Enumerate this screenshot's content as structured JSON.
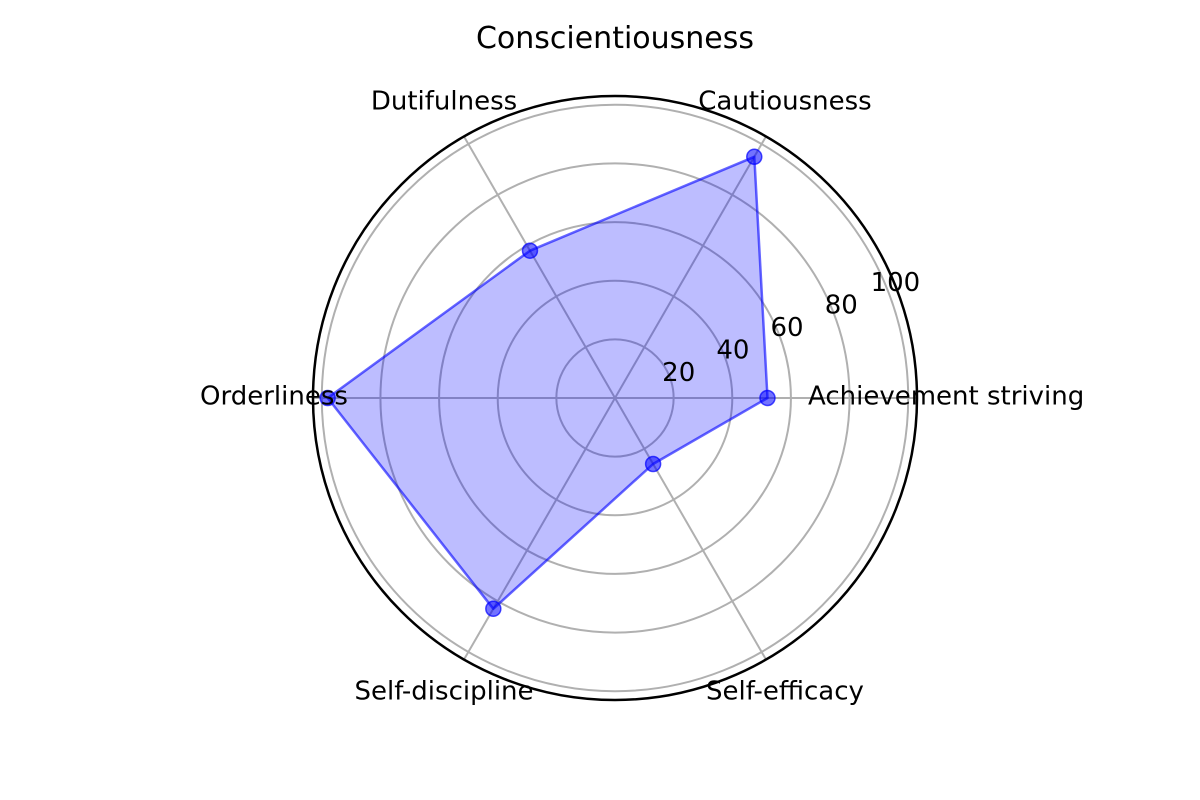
{
  "chart_data": {
    "type": "radar",
    "title": "Conscientiousness",
    "categories": [
      "Achievement striving",
      "Cautiousness",
      "Dutifulness",
      "Orderliness",
      "Self-discipline",
      "Self-efficacy"
    ],
    "series": [
      {
        "values": [
          52,
          95,
          58,
          98,
          83,
          26
        ]
      }
    ],
    "r_ticks": [
      20,
      40,
      60,
      80,
      100
    ],
    "r_tick_labels": [
      "20",
      "40",
      "60",
      "80",
      "100"
    ],
    "rlim": [
      0,
      103
    ],
    "grid": true,
    "colors": {
      "fill": "#0000ff",
      "fill_opacity": 0.26,
      "line": "#0000ff",
      "line_opacity": 0.6,
      "marker": "#0000ff",
      "marker_opacity": 0.55,
      "grid": "#b0b0b0",
      "frame": "#000000"
    }
  }
}
